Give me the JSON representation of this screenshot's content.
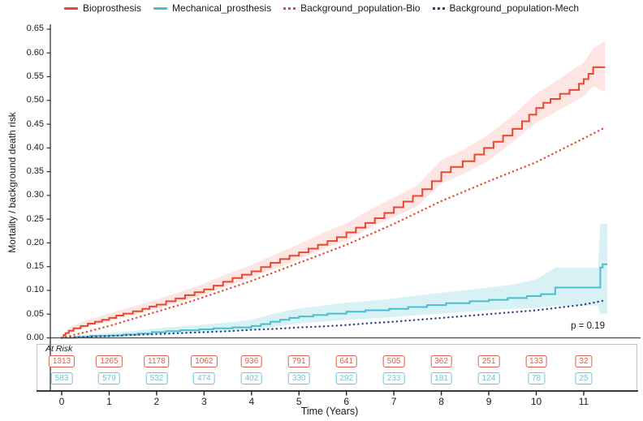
{
  "legend": {
    "items": [
      {
        "label": "Bioprosthesis",
        "color": "#E7482F",
        "style": "solid"
      },
      {
        "label": "Mechanical_prosthesis",
        "color": "#4BBDCE",
        "style": "solid"
      },
      {
        "label": "Background_population-Bio",
        "color": "#E7482F",
        "style": "dotted"
      },
      {
        "label": "Background_population-Mech",
        "color": "#2E3D8C",
        "style": "dotted"
      }
    ]
  },
  "y_axis": {
    "label": "Mortality / background death risk",
    "ticks": [
      "0.00",
      "0.05",
      "0.10",
      "0.15",
      "0.20",
      "0.25",
      "0.30",
      "0.35",
      "0.40",
      "0.45",
      "0.50",
      "0.55",
      "0.60",
      "0.65"
    ],
    "min": 0,
    "max": 0.65
  },
  "x_axis": {
    "label": "Time (Years)",
    "ticks": [
      "0",
      "1",
      "2",
      "3",
      "4",
      "5",
      "6",
      "7",
      "8",
      "9",
      "10",
      "11"
    ],
    "min": 0,
    "max": 11.5
  },
  "annotation": {
    "p_value": "p = 0.19"
  },
  "at_risk": {
    "label": "At Risk",
    "rows": [
      {
        "name": "Bioprosthesis",
        "color": "#E05C4B",
        "values": [
          "1313",
          "1265",
          "1178",
          "1062",
          "936",
          "791",
          "641",
          "505",
          "362",
          "251",
          "133",
          "32"
        ]
      },
      {
        "name": "Mechanical_prosthesis",
        "color": "#6CC5D4",
        "values": [
          "583",
          "579",
          "532",
          "474",
          "402",
          "330",
          "292",
          "233",
          "181",
          "124",
          "78",
          "25"
        ]
      }
    ]
  },
  "chart_data": {
    "type": "line",
    "title": "",
    "xlabel": "Time (Years)",
    "ylabel": "Mortality / background death risk",
    "xlim": [
      0,
      11.5
    ],
    "ylim": [
      0,
      0.65
    ],
    "grid": false,
    "legend_position": "top",
    "series": [
      {
        "name": "Bioprosthesis",
        "color": "#E7482F",
        "line": "solid",
        "shape": "step",
        "points": [
          [
            0,
            0
          ],
          [
            0.04,
            0.006
          ],
          [
            0.08,
            0.01
          ],
          [
            0.15,
            0.015
          ],
          [
            0.25,
            0.02
          ],
          [
            0.4,
            0.025
          ],
          [
            0.55,
            0.03
          ],
          [
            0.7,
            0.034
          ],
          [
            0.85,
            0.038
          ],
          [
            1.0,
            0.042
          ],
          [
            1.15,
            0.047
          ],
          [
            1.3,
            0.051
          ],
          [
            1.5,
            0.056
          ],
          [
            1.7,
            0.061
          ],
          [
            1.85,
            0.066
          ],
          [
            2.0,
            0.07
          ],
          [
            2.2,
            0.077
          ],
          [
            2.4,
            0.083
          ],
          [
            2.6,
            0.09
          ],
          [
            2.8,
            0.096
          ],
          [
            3.0,
            0.102
          ],
          [
            3.2,
            0.11
          ],
          [
            3.4,
            0.118
          ],
          [
            3.6,
            0.126
          ],
          [
            3.8,
            0.133
          ],
          [
            4.0,
            0.14
          ],
          [
            4.2,
            0.149
          ],
          [
            4.4,
            0.158
          ],
          [
            4.6,
            0.166
          ],
          [
            4.8,
            0.173
          ],
          [
            5.0,
            0.18
          ],
          [
            5.2,
            0.188
          ],
          [
            5.4,
            0.196
          ],
          [
            5.6,
            0.204
          ],
          [
            5.8,
            0.212
          ],
          [
            6.0,
            0.222
          ],
          [
            6.2,
            0.232
          ],
          [
            6.4,
            0.242
          ],
          [
            6.6,
            0.252
          ],
          [
            6.8,
            0.263
          ],
          [
            7.0,
            0.275
          ],
          [
            7.2,
            0.287
          ],
          [
            7.4,
            0.299
          ],
          [
            7.6,
            0.313
          ],
          [
            7.8,
            0.33
          ],
          [
            8.0,
            0.349
          ],
          [
            8.2,
            0.36
          ],
          [
            8.45,
            0.372
          ],
          [
            8.7,
            0.386
          ],
          [
            8.9,
            0.4
          ],
          [
            9.1,
            0.413
          ],
          [
            9.3,
            0.426
          ],
          [
            9.5,
            0.44
          ],
          [
            9.7,
            0.456
          ],
          [
            9.85,
            0.47
          ],
          [
            10.0,
            0.484
          ],
          [
            10.15,
            0.495
          ],
          [
            10.3,
            0.503
          ],
          [
            10.5,
            0.514
          ],
          [
            10.7,
            0.522
          ],
          [
            10.9,
            0.535
          ],
          [
            11.0,
            0.545
          ],
          [
            11.1,
            0.556
          ],
          [
            11.2,
            0.57
          ],
          [
            11.45,
            0.57
          ]
        ],
        "band_fill": "rgba(231,72,47,0.14)",
        "band": [
          [
            0,
            0,
            0
          ],
          [
            0.15,
            0.01,
            0.022
          ],
          [
            0.5,
            0.022,
            0.036
          ],
          [
            1,
            0.035,
            0.051
          ],
          [
            1.5,
            0.048,
            0.066
          ],
          [
            2,
            0.061,
            0.081
          ],
          [
            2.5,
            0.076,
            0.097
          ],
          [
            3,
            0.091,
            0.114
          ],
          [
            3.5,
            0.11,
            0.135
          ],
          [
            4,
            0.127,
            0.154
          ],
          [
            4.5,
            0.146,
            0.176
          ],
          [
            5,
            0.165,
            0.197
          ],
          [
            5.5,
            0.187,
            0.221
          ],
          [
            6,
            0.205,
            0.241
          ],
          [
            6.5,
            0.232,
            0.27
          ],
          [
            7,
            0.254,
            0.295
          ],
          [
            7.5,
            0.278,
            0.322
          ],
          [
            8,
            0.325,
            0.374
          ],
          [
            8.5,
            0.347,
            0.398
          ],
          [
            9,
            0.373,
            0.428
          ],
          [
            9.5,
            0.412,
            0.468
          ],
          [
            10,
            0.453,
            0.514
          ],
          [
            10.5,
            0.481,
            0.546
          ],
          [
            11,
            0.509,
            0.58
          ],
          [
            11.2,
            0.53,
            0.61
          ],
          [
            11.45,
            0.518,
            0.625
          ]
        ]
      },
      {
        "name": "Mechanical_prosthesis",
        "color": "#4BBDCE",
        "line": "solid",
        "shape": "step",
        "points": [
          [
            0,
            0
          ],
          [
            0.3,
            0.002
          ],
          [
            0.6,
            0.004
          ],
          [
            1.0,
            0.005
          ],
          [
            1.3,
            0.007
          ],
          [
            1.6,
            0.009
          ],
          [
            1.9,
            0.012
          ],
          [
            2.2,
            0.014
          ],
          [
            2.5,
            0.016
          ],
          [
            2.9,
            0.018
          ],
          [
            3.2,
            0.02
          ],
          [
            3.6,
            0.022
          ],
          [
            4.0,
            0.025
          ],
          [
            4.2,
            0.029
          ],
          [
            4.4,
            0.034
          ],
          [
            4.6,
            0.038
          ],
          [
            4.8,
            0.042
          ],
          [
            5.0,
            0.045
          ],
          [
            5.3,
            0.048
          ],
          [
            5.6,
            0.051
          ],
          [
            6.0,
            0.055
          ],
          [
            6.4,
            0.058
          ],
          [
            6.9,
            0.061
          ],
          [
            7.3,
            0.065
          ],
          [
            7.7,
            0.069
          ],
          [
            8.1,
            0.073
          ],
          [
            8.6,
            0.077
          ],
          [
            9.0,
            0.08
          ],
          [
            9.4,
            0.084
          ],
          [
            9.8,
            0.088
          ],
          [
            10.1,
            0.092
          ],
          [
            10.4,
            0.106
          ],
          [
            11.3,
            0.106
          ],
          [
            11.35,
            0.148
          ],
          [
            11.4,
            0.155
          ],
          [
            11.5,
            0.155
          ]
        ],
        "band_fill": "rgba(75,189,206,0.22)",
        "band": [
          [
            0,
            0,
            0
          ],
          [
            0.5,
            0.001,
            0.007
          ],
          [
            1,
            0.002,
            0.01
          ],
          [
            1.5,
            0.004,
            0.014
          ],
          [
            2,
            0.007,
            0.02
          ],
          [
            2.5,
            0.009,
            0.024
          ],
          [
            3,
            0.011,
            0.028
          ],
          [
            3.5,
            0.013,
            0.032
          ],
          [
            4,
            0.016,
            0.038
          ],
          [
            4.5,
            0.024,
            0.052
          ],
          [
            5,
            0.03,
            0.062
          ],
          [
            5.5,
            0.034,
            0.068
          ],
          [
            6,
            0.038,
            0.074
          ],
          [
            6.5,
            0.041,
            0.078
          ],
          [
            7,
            0.044,
            0.083
          ],
          [
            7.5,
            0.048,
            0.089
          ],
          [
            8,
            0.051,
            0.095
          ],
          [
            8.5,
            0.055,
            0.1
          ],
          [
            9,
            0.058,
            0.106
          ],
          [
            9.5,
            0.061,
            0.112
          ],
          [
            10,
            0.063,
            0.123
          ],
          [
            10.4,
            0.068,
            0.148
          ],
          [
            11.3,
            0.068,
            0.148
          ],
          [
            11.35,
            0.05,
            0.24
          ],
          [
            11.5,
            0.05,
            0.24
          ]
        ]
      },
      {
        "name": "Background_population-Bio",
        "color": "#E7482F",
        "line": "dotted",
        "shape": "linear",
        "points": [
          [
            0,
            0
          ],
          [
            0.5,
            0.012
          ],
          [
            1,
            0.025
          ],
          [
            1.5,
            0.04
          ],
          [
            2,
            0.055
          ],
          [
            2.5,
            0.07
          ],
          [
            3,
            0.086
          ],
          [
            3.5,
            0.103
          ],
          [
            4,
            0.12
          ],
          [
            4.5,
            0.139
          ],
          [
            5,
            0.158
          ],
          [
            5.5,
            0.177
          ],
          [
            6,
            0.196
          ],
          [
            6.5,
            0.218
          ],
          [
            7,
            0.24
          ],
          [
            7.5,
            0.264
          ],
          [
            8,
            0.288
          ],
          [
            8.5,
            0.309
          ],
          [
            9,
            0.33
          ],
          [
            9.5,
            0.35
          ],
          [
            10,
            0.37
          ],
          [
            10.5,
            0.395
          ],
          [
            11,
            0.42
          ],
          [
            11.45,
            0.443
          ]
        ]
      },
      {
        "name": "Background_population-Mech",
        "color": "#2E3D8C",
        "line": "dotted",
        "shape": "linear",
        "points": [
          [
            0,
            0
          ],
          [
            0.5,
            0.002
          ],
          [
            1,
            0.004
          ],
          [
            1.5,
            0.006
          ],
          [
            2,
            0.008
          ],
          [
            2.5,
            0.01
          ],
          [
            3,
            0.012
          ],
          [
            3.5,
            0.014
          ],
          [
            4,
            0.017
          ],
          [
            4.5,
            0.019
          ],
          [
            5,
            0.022
          ],
          [
            5.5,
            0.024
          ],
          [
            6,
            0.027
          ],
          [
            6.5,
            0.031
          ],
          [
            7,
            0.034
          ],
          [
            7.5,
            0.038
          ],
          [
            8,
            0.042
          ],
          [
            8.5,
            0.046
          ],
          [
            9,
            0.05
          ],
          [
            9.5,
            0.054
          ],
          [
            10,
            0.058
          ],
          [
            10.5,
            0.064
          ],
          [
            11,
            0.07
          ],
          [
            11.45,
            0.079
          ]
        ]
      }
    ],
    "at_risk_table": {
      "label": "At Risk",
      "times": [
        0,
        1,
        2,
        3,
        4,
        5,
        6,
        7,
        8,
        9,
        10,
        11
      ],
      "Bioprosthesis": [
        1313,
        1265,
        1178,
        1062,
        936,
        791,
        641,
        505,
        362,
        251,
        133,
        32
      ],
      "Mechanical_prosthesis": [
        583,
        579,
        532,
        474,
        402,
        330,
        292,
        233,
        181,
        124,
        78,
        25
      ]
    },
    "annotations": [
      "p = 0.19"
    ]
  }
}
